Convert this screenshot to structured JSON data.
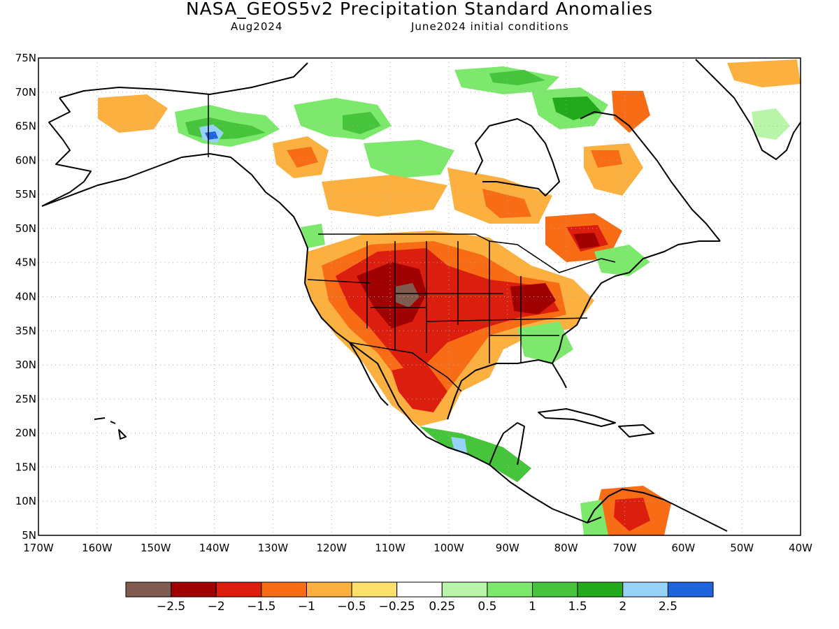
{
  "title": "NASA_GEOS5v2 Precipitation Standard Anomalies",
  "subtitle_left": "Aug2024",
  "subtitle_right": "June2024 initial conditions",
  "lat_labels": [
    "75N",
    "70N",
    "65N",
    "60N",
    "55N",
    "50N",
    "45N",
    "40N",
    "35N",
    "30N",
    "25N",
    "20N",
    "15N",
    "10N",
    "5N"
  ],
  "lon_labels": [
    "170W",
    "160W",
    "150W",
    "140W",
    "130W",
    "120W",
    "110W",
    "100W",
    "90W",
    "80W",
    "70W",
    "60W",
    "50W",
    "40W"
  ],
  "colorbar": {
    "colors": [
      "#7f5a4e",
      "#a00000",
      "#dc1e0f",
      "#f86c16",
      "#fbb040",
      "#fde06c",
      "#ffffff",
      "#b9f5a9",
      "#7ce86c",
      "#46c43c",
      "#22a91c",
      "#96d2fa",
      "#1e64dc"
    ],
    "labels": [
      "-2.5",
      "-2",
      "-1.5",
      "-1",
      "-0.5",
      "-0.25",
      "0.25",
      "0.5",
      "1",
      "1.5",
      "2",
      "2.5"
    ]
  },
  "colors": {
    "dry_extreme": "#7f5a4e",
    "dry_strong": "#a00000",
    "dry": "#dc1e0f",
    "dry_moderate": "#f86c16",
    "dry_weak": "#fbb040",
    "dry_slight": "#fde06c",
    "wet_slight": "#b9f5a9",
    "wet_weak": "#7ce86c",
    "wet": "#46c43c",
    "wet_strong": "#22a91c",
    "wet_very": "#96d2fa",
    "wet_extreme": "#1e64dc"
  }
}
